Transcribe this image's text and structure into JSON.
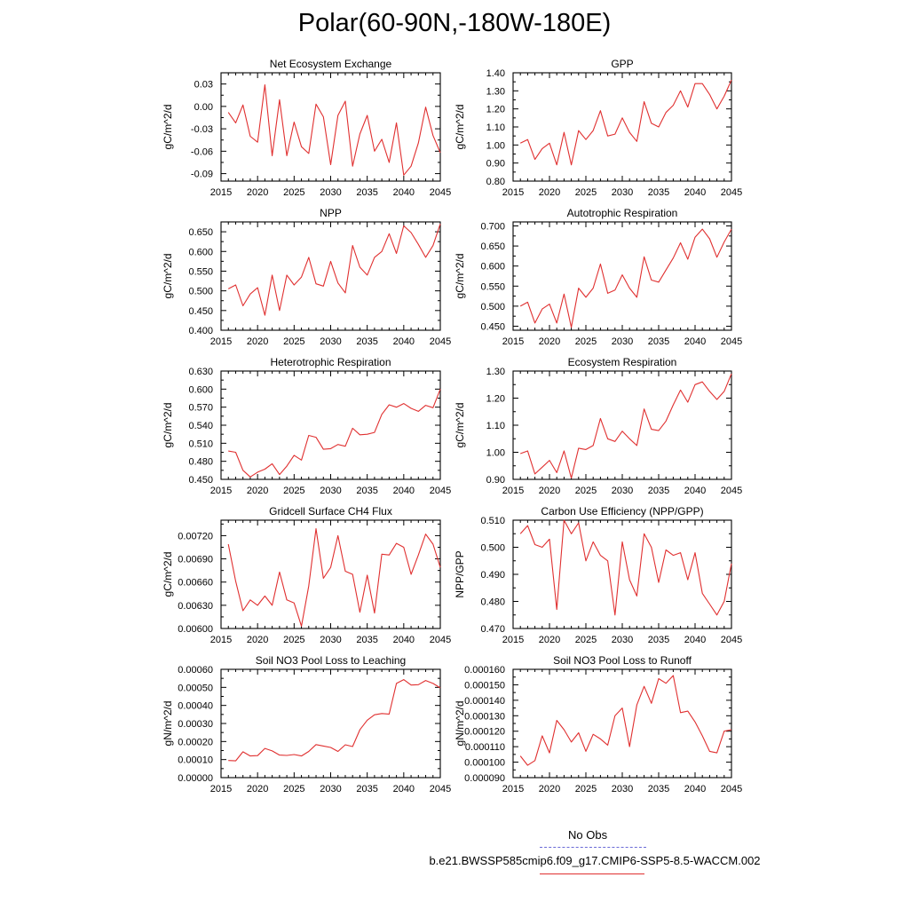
{
  "figure": {
    "title": "Polar(60-90N,-180W-180E)",
    "legend": {
      "obs_label": "No Obs",
      "case_label": "b.e21.BWSSP585cmip6.f09_g17.CMIP6-SSP5-8.5-WACCM.002",
      "obs_color": "#6a6ad6",
      "case_color": "#e03030"
    }
  },
  "chart_data": [
    {
      "type": "line",
      "title": "Net Ecosystem Exchange",
      "ylabel": "gC/m^2/d",
      "xlabel": "",
      "xlim": [
        2015,
        2045
      ],
      "ylim": [
        -0.1,
        0.045
      ],
      "xticks": [
        2015,
        2020,
        2025,
        2030,
        2035,
        2040,
        2045
      ],
      "xtick_labels": [
        "2015",
        "2020",
        "2025",
        "2030",
        "2035",
        "2040",
        "2045"
      ],
      "yticks": [
        -0.09,
        -0.06,
        -0.03,
        0.0,
        0.03
      ],
      "ytick_labels": [
        "-0.09",
        "-0.06",
        "-0.03",
        "0.00",
        "0.03"
      ],
      "x": [
        2016,
        2017,
        2018,
        2019,
        2020,
        2021,
        2022,
        2023,
        2024,
        2025,
        2026,
        2027,
        2028,
        2029,
        2030,
        2031,
        2032,
        2033,
        2034,
        2035,
        2036,
        2037,
        2038,
        2039,
        2040,
        2041,
        2042,
        2043,
        2044,
        2045
      ],
      "series": [
        {
          "name": "b.e21.BWSSP585cmip6.f09_g17.CMIP6-SSP5-8.5-WACCM.002",
          "color": "#e03030",
          "values": [
            -0.008,
            -0.022,
            0.002,
            -0.04,
            -0.048,
            0.029,
            -0.066,
            0.009,
            -0.066,
            -0.021,
            -0.054,
            -0.063,
            0.003,
            -0.014,
            -0.078,
            -0.012,
            0.007,
            -0.08,
            -0.037,
            -0.012,
            -0.06,
            -0.044,
            -0.075,
            -0.022,
            -0.092,
            -0.08,
            -0.049,
            -0.001,
            -0.039,
            -0.062
          ]
        }
      ]
    },
    {
      "type": "line",
      "title": "GPP",
      "ylabel": "gC/m^2/d",
      "xlabel": "",
      "xlim": [
        2015,
        2045
      ],
      "ylim": [
        0.8,
        1.4
      ],
      "xticks": [
        2015,
        2020,
        2025,
        2030,
        2035,
        2040,
        2045
      ],
      "xtick_labels": [
        "2015",
        "2020",
        "2025",
        "2030",
        "2035",
        "2040",
        "2045"
      ],
      "yticks": [
        0.8,
        0.9,
        1.0,
        1.1,
        1.2,
        1.3,
        1.4
      ],
      "ytick_labels": [
        "0.80",
        "0.90",
        "1.00",
        "1.10",
        "1.20",
        "1.30",
        "1.40"
      ],
      "x": [
        2016,
        2017,
        2018,
        2019,
        2020,
        2021,
        2022,
        2023,
        2024,
        2025,
        2026,
        2027,
        2028,
        2029,
        2030,
        2031,
        2032,
        2033,
        2034,
        2035,
        2036,
        2037,
        2038,
        2039,
        2040,
        2041,
        2042,
        2043,
        2044,
        2045
      ],
      "series": [
        {
          "name": "b.e21.BWSSP585cmip6.f09_g17.CMIP6-SSP5-8.5-WACCM.002",
          "color": "#e03030",
          "values": [
            1.01,
            1.03,
            0.92,
            0.98,
            1.01,
            0.89,
            1.07,
            0.89,
            1.08,
            1.03,
            1.08,
            1.19,
            1.05,
            1.06,
            1.15,
            1.07,
            1.02,
            1.24,
            1.12,
            1.1,
            1.18,
            1.22,
            1.3,
            1.21,
            1.34,
            1.34,
            1.28,
            1.2,
            1.27,
            1.36
          ]
        }
      ]
    },
    {
      "type": "line",
      "title": "NPP",
      "ylabel": "gC/m^2/d",
      "xlabel": "",
      "xlim": [
        2015,
        2045
      ],
      "ylim": [
        0.4,
        0.675
      ],
      "xticks": [
        2015,
        2020,
        2025,
        2030,
        2035,
        2040,
        2045
      ],
      "xtick_labels": [
        "2015",
        "2020",
        "2025",
        "2030",
        "2035",
        "2040",
        "2045"
      ],
      "yticks": [
        0.4,
        0.45,
        0.5,
        0.55,
        0.6,
        0.65
      ],
      "ytick_labels": [
        "0.400",
        "0.450",
        "0.500",
        "0.550",
        "0.600",
        "0.650"
      ],
      "x": [
        2016,
        2017,
        2018,
        2019,
        2020,
        2021,
        2022,
        2023,
        2024,
        2025,
        2026,
        2027,
        2028,
        2029,
        2030,
        2031,
        2032,
        2033,
        2034,
        2035,
        2036,
        2037,
        2038,
        2039,
        2040,
        2041,
        2042,
        2043,
        2044,
        2045
      ],
      "series": [
        {
          "name": "b.e21.BWSSP585cmip6.f09_g17.CMIP6-SSP5-8.5-WACCM.002",
          "color": "#e03030",
          "values": [
            0.505,
            0.515,
            0.462,
            0.492,
            0.508,
            0.438,
            0.54,
            0.45,
            0.54,
            0.515,
            0.535,
            0.585,
            0.518,
            0.512,
            0.575,
            0.52,
            0.495,
            0.615,
            0.56,
            0.54,
            0.585,
            0.6,
            0.645,
            0.595,
            0.665,
            0.648,
            0.618,
            0.585,
            0.615,
            0.67
          ]
        }
      ]
    },
    {
      "type": "line",
      "title": "Autotrophic Respiration",
      "ylabel": "gC/m^2/d",
      "xlabel": "",
      "xlim": [
        2015,
        2045
      ],
      "ylim": [
        0.44,
        0.71
      ],
      "xticks": [
        2015,
        2020,
        2025,
        2030,
        2035,
        2040,
        2045
      ],
      "xtick_labels": [
        "2015",
        "2020",
        "2025",
        "2030",
        "2035",
        "2040",
        "2045"
      ],
      "yticks": [
        0.45,
        0.5,
        0.55,
        0.6,
        0.65,
        0.7
      ],
      "ytick_labels": [
        "0.450",
        "0.500",
        "0.550",
        "0.600",
        "0.650",
        "0.700"
      ],
      "x": [
        2016,
        2017,
        2018,
        2019,
        2020,
        2021,
        2022,
        2023,
        2024,
        2025,
        2026,
        2027,
        2028,
        2029,
        2030,
        2031,
        2032,
        2033,
        2034,
        2035,
        2036,
        2037,
        2038,
        2039,
        2040,
        2041,
        2042,
        2043,
        2044,
        2045
      ],
      "series": [
        {
          "name": "b.e21.BWSSP585cmip6.f09_g17.CMIP6-SSP5-8.5-WACCM.002",
          "color": "#e03030",
          "values": [
            0.5,
            0.51,
            0.458,
            0.493,
            0.505,
            0.458,
            0.53,
            0.447,
            0.545,
            0.522,
            0.545,
            0.605,
            0.532,
            0.54,
            0.578,
            0.545,
            0.522,
            0.623,
            0.565,
            0.56,
            0.59,
            0.62,
            0.658,
            0.617,
            0.672,
            0.692,
            0.668,
            0.622,
            0.66,
            0.692
          ]
        }
      ]
    },
    {
      "type": "line",
      "title": "Heterotrophic Respiration",
      "ylabel": "gC/m^2/d",
      "xlabel": "",
      "xlim": [
        2015,
        2045
      ],
      "ylim": [
        0.45,
        0.63
      ],
      "xticks": [
        2015,
        2020,
        2025,
        2030,
        2035,
        2040,
        2045
      ],
      "xtick_labels": [
        "2015",
        "2020",
        "2025",
        "2030",
        "2035",
        "2040",
        "2045"
      ],
      "yticks": [
        0.45,
        0.48,
        0.51,
        0.54,
        0.57,
        0.6,
        0.63
      ],
      "ytick_labels": [
        "0.450",
        "0.480",
        "0.510",
        "0.540",
        "0.570",
        "0.600",
        "0.630"
      ],
      "x": [
        2016,
        2017,
        2018,
        2019,
        2020,
        2021,
        2022,
        2023,
        2024,
        2025,
        2026,
        2027,
        2028,
        2029,
        2030,
        2031,
        2032,
        2033,
        2034,
        2035,
        2036,
        2037,
        2038,
        2039,
        2040,
        2041,
        2042,
        2043,
        2044,
        2045
      ],
      "series": [
        {
          "name": "b.e21.BWSSP585cmip6.f09_g17.CMIP6-SSP5-8.5-WACCM.002",
          "color": "#e03030",
          "values": [
            0.497,
            0.495,
            0.465,
            0.454,
            0.462,
            0.467,
            0.476,
            0.458,
            0.472,
            0.49,
            0.482,
            0.523,
            0.52,
            0.5,
            0.501,
            0.508,
            0.505,
            0.535,
            0.524,
            0.525,
            0.528,
            0.558,
            0.574,
            0.57,
            0.576,
            0.568,
            0.563,
            0.573,
            0.569,
            0.6
          ]
        }
      ]
    },
    {
      "type": "line",
      "title": "Ecosystem Respiration",
      "ylabel": "gC/m^2/d",
      "xlabel": "",
      "xlim": [
        2015,
        2045
      ],
      "ylim": [
        0.9,
        1.3
      ],
      "xticks": [
        2015,
        2020,
        2025,
        2030,
        2035,
        2040,
        2045
      ],
      "xtick_labels": [
        "2015",
        "2020",
        "2025",
        "2030",
        "2035",
        "2040",
        "2045"
      ],
      "yticks": [
        0.9,
        1.0,
        1.1,
        1.2,
        1.3
      ],
      "ytick_labels": [
        "0.90",
        "1.00",
        "1.10",
        "1.20",
        "1.30"
      ],
      "x": [
        2016,
        2017,
        2018,
        2019,
        2020,
        2021,
        2022,
        2023,
        2024,
        2025,
        2026,
        2027,
        2028,
        2029,
        2030,
        2031,
        2032,
        2033,
        2034,
        2035,
        2036,
        2037,
        2038,
        2039,
        2040,
        2041,
        2042,
        2043,
        2044,
        2045
      ],
      "series": [
        {
          "name": "b.e21.BWSSP585cmip6.f09_g17.CMIP6-SSP5-8.5-WACCM.002",
          "color": "#e03030",
          "values": [
            0.995,
            1.005,
            0.92,
            0.945,
            0.97,
            0.925,
            1.005,
            0.905,
            1.015,
            1.01,
            1.025,
            1.125,
            1.05,
            1.04,
            1.078,
            1.05,
            1.025,
            1.16,
            1.085,
            1.08,
            1.115,
            1.175,
            1.23,
            1.185,
            1.25,
            1.26,
            1.225,
            1.195,
            1.225,
            1.29
          ]
        }
      ]
    },
    {
      "type": "line",
      "title": "Gridcell Surface CH4 Flux",
      "ylabel": "gC/m^2/d",
      "xlabel": "",
      "xlim": [
        2015,
        2045
      ],
      "ylim": [
        0.006,
        0.0074
      ],
      "xticks": [
        2015,
        2020,
        2025,
        2030,
        2035,
        2040,
        2045
      ],
      "xtick_labels": [
        "2015",
        "2020",
        "2025",
        "2030",
        "2035",
        "2040",
        "2045"
      ],
      "yticks": [
        0.006,
        0.0063,
        0.0066,
        0.0069,
        0.0072
      ],
      "ytick_labels": [
        "0.00600",
        "0.00630",
        "0.00660",
        "0.00690",
        "0.00720"
      ],
      "x": [
        2016,
        2017,
        2018,
        2019,
        2020,
        2021,
        2022,
        2023,
        2024,
        2025,
        2026,
        2027,
        2028,
        2029,
        2030,
        2031,
        2032,
        2033,
        2034,
        2035,
        2036,
        2037,
        2038,
        2039,
        2040,
        2041,
        2042,
        2043,
        2044,
        2045
      ],
      "series": [
        {
          "name": "b.e21.BWSSP585cmip6.f09_g17.CMIP6-SSP5-8.5-WACCM.002",
          "color": "#e03030",
          "values": [
            0.00709,
            0.00661,
            0.00623,
            0.00637,
            0.0063,
            0.00642,
            0.0063,
            0.00673,
            0.00637,
            0.00633,
            0.00603,
            0.00655,
            0.00729,
            0.00665,
            0.00679,
            0.0072,
            0.00674,
            0.0067,
            0.00621,
            0.00669,
            0.0062,
            0.00696,
            0.00695,
            0.0071,
            0.00705,
            0.0067,
            0.00695,
            0.00722,
            0.00709,
            0.00679
          ]
        }
      ]
    },
    {
      "type": "line",
      "title": "Carbon Use Efficiency (NPP/GPP)",
      "ylabel": "NPP/GPP",
      "xlabel": "",
      "xlim": [
        2015,
        2045
      ],
      "ylim": [
        0.47,
        0.51
      ],
      "xticks": [
        2015,
        2020,
        2025,
        2030,
        2035,
        2040,
        2045
      ],
      "xtick_labels": [
        "2015",
        "2020",
        "2025",
        "2030",
        "2035",
        "2040",
        "2045"
      ],
      "yticks": [
        0.47,
        0.48,
        0.49,
        0.5,
        0.51
      ],
      "ytick_labels": [
        "0.470",
        "0.480",
        "0.490",
        "0.500",
        "0.510"
      ],
      "x": [
        2016,
        2017,
        2018,
        2019,
        2020,
        2021,
        2022,
        2023,
        2024,
        2025,
        2026,
        2027,
        2028,
        2029,
        2030,
        2031,
        2032,
        2033,
        2034,
        2035,
        2036,
        2037,
        2038,
        2039,
        2040,
        2041,
        2042,
        2043,
        2044,
        2045
      ],
      "series": [
        {
          "name": "b.e21.BWSSP585cmip6.f09_g17.CMIP6-SSP5-8.5-WACCM.002",
          "color": "#e03030",
          "values": [
            0.505,
            0.508,
            0.501,
            0.5,
            0.503,
            0.477,
            0.51,
            0.505,
            0.509,
            0.495,
            0.502,
            0.497,
            0.495,
            0.475,
            0.502,
            0.488,
            0.482,
            0.505,
            0.5,
            0.487,
            0.499,
            0.497,
            0.498,
            0.488,
            0.498,
            0.483,
            0.479,
            0.475,
            0.48,
            0.494
          ]
        }
      ]
    },
    {
      "type": "line",
      "title": "Soil NO3 Pool Loss to Leaching",
      "ylabel": "gN/m^2/d",
      "xlabel": "",
      "xlim": [
        2015,
        2045
      ],
      "ylim": [
        0.0,
        0.0006
      ],
      "xticks": [
        2015,
        2020,
        2025,
        2030,
        2035,
        2040,
        2045
      ],
      "xtick_labels": [
        "2015",
        "2020",
        "2025",
        "2030",
        "2035",
        "2040",
        "2045"
      ],
      "yticks": [
        0.0,
        0.0001,
        0.0002,
        0.0003,
        0.0004,
        0.0005,
        0.0006
      ],
      "ytick_labels": [
        "0.00000",
        "0.00010",
        "0.00020",
        "0.00030",
        "0.00040",
        "0.00050",
        "0.00060"
      ],
      "x": [
        2016,
        2017,
        2018,
        2019,
        2020,
        2021,
        2022,
        2023,
        2024,
        2025,
        2026,
        2027,
        2028,
        2029,
        2030,
        2031,
        2032,
        2033,
        2034,
        2035,
        2036,
        2037,
        2038,
        2039,
        2040,
        2041,
        2042,
        2043,
        2044,
        2045
      ],
      "series": [
        {
          "name": "b.e21.BWSSP585cmip6.f09_g17.CMIP6-SSP5-8.5-WACCM.002",
          "color": "#e03030",
          "values": [
            9.5e-05,
            9.3e-05,
            0.000143,
            0.00012,
            0.000122,
            0.000162,
            0.000148,
            0.000125,
            0.000123,
            0.000128,
            0.00012,
            0.000145,
            0.000183,
            0.000175,
            0.000167,
            0.000145,
            0.000182,
            0.000172,
            0.000265,
            0.000318,
            0.000348,
            0.000355,
            0.000352,
            0.000522,
            0.000543,
            0.000513,
            0.000515,
            0.000538,
            0.000522,
            0.000497
          ]
        }
      ]
    },
    {
      "type": "line",
      "title": "Soil NO3 Pool Loss to Runoff",
      "ylabel": "gN/m^2/d",
      "xlabel": "",
      "xlim": [
        2015,
        2045
      ],
      "ylim": [
        9e-05,
        0.00016
      ],
      "xticks": [
        2015,
        2020,
        2025,
        2030,
        2035,
        2040,
        2045
      ],
      "xtick_labels": [
        "2015",
        "2020",
        "2025",
        "2030",
        "2035",
        "2040",
        "2045"
      ],
      "yticks": [
        9e-05,
        0.0001,
        0.00011,
        0.00012,
        0.00013,
        0.00014,
        0.00015,
        0.00016
      ],
      "ytick_labels": [
        "0.000090",
        "0.000100",
        "0.000110",
        "0.000120",
        "0.000130",
        "0.000140",
        "0.000150",
        "0.000160"
      ],
      "x": [
        2016,
        2017,
        2018,
        2019,
        2020,
        2021,
        2022,
        2023,
        2024,
        2025,
        2026,
        2027,
        2028,
        2029,
        2030,
        2031,
        2032,
        2033,
        2034,
        2035,
        2036,
        2037,
        2038,
        2039,
        2040,
        2041,
        2042,
        2043,
        2044,
        2045
      ],
      "series": [
        {
          "name": "b.e21.BWSSP585cmip6.f09_g17.CMIP6-SSP5-8.5-WACCM.002",
          "color": "#e03030",
          "values": [
            0.000104,
            9.8e-05,
            0.000101,
            0.000117,
            0.000106,
            0.000127,
            0.000121,
            0.000113,
            0.000119,
            0.000107,
            0.000118,
            0.000115,
            0.000111,
            0.00013,
            0.000135,
            0.00011,
            0.000137,
            0.000149,
            0.000138,
            0.000154,
            0.000151,
            0.000156,
            0.000132,
            0.000133,
            0.000126,
            0.000117,
            0.000107,
            0.000106,
            0.00012,
            0.000121
          ]
        }
      ]
    }
  ]
}
